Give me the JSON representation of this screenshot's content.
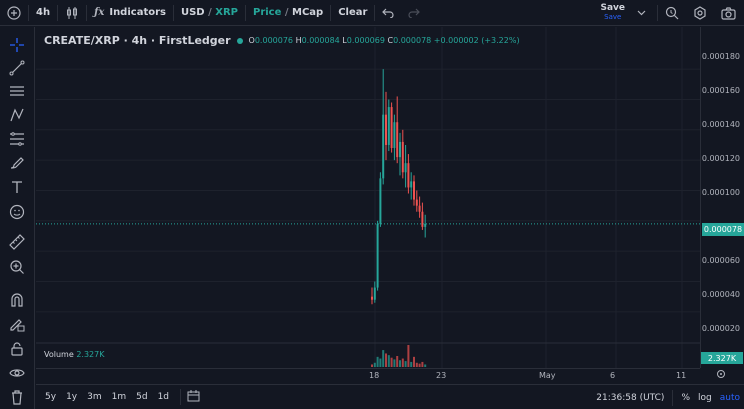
{
  "toolbar": {
    "interval": "4h",
    "indicators_label": "Indicators",
    "currency_left": "USD",
    "currency_sep": "/",
    "currency_right": "XRP",
    "price_label": "Price",
    "mode_sep": "/",
    "mcap_label": "MCap",
    "clear_label": "Clear",
    "save_label": "Save",
    "save_sub": "Save"
  },
  "legend": {
    "symbol": "CREATE/XRP · 4h · FirstLedger",
    "o_label": "O",
    "o_value": "0.000076",
    "h_label": "H",
    "h_value": "0.000084",
    "l_label": "L",
    "l_value": "0.000069",
    "c_label": "C",
    "c_value": "0.000078",
    "change": "+0.000002 (+3.22%)"
  },
  "volume": {
    "label": "Volume",
    "value": "2.327K",
    "badge": "2.327K"
  },
  "price_axis": {
    "labels": [
      "0.000180",
      "0.000160",
      "0.000140",
      "0.000120",
      "0.000100",
      "0.000060",
      "0.000040",
      "0.000020"
    ],
    "current": "0.000078"
  },
  "time_axis": {
    "labels": [
      "18",
      "23",
      "May",
      "6",
      "11"
    ]
  },
  "bottombar": {
    "ranges": [
      "5y",
      "1y",
      "3m",
      "1m",
      "5d",
      "1d"
    ],
    "clock": "21:36:58 (UTC)",
    "percent": "%",
    "log": "log",
    "auto": "auto"
  },
  "colors": {
    "up": "#26a69a",
    "down": "#ef5350",
    "accent": "#2962ff",
    "bg": "#131722"
  },
  "chart_data": {
    "type": "candlestick",
    "ylim": [
      1e-05,
      0.000188
    ],
    "candles": [
      {
        "o": 3e-05,
        "h": 3.6e-05,
        "l": 2.5e-05,
        "c": 2.8e-05
      },
      {
        "o": 2.8e-05,
        "h": 4e-05,
        "l": 2.6e-05,
        "c": 3.6e-05
      },
      {
        "o": 3.6e-05,
        "h": 8e-05,
        "l": 3.4e-05,
        "c": 7.8e-05
      },
      {
        "o": 7.8e-05,
        "h": 0.000112,
        "l": 7.6e-05,
        "c": 0.000108
      },
      {
        "o": 0.000108,
        "h": 0.00018,
        "l": 0.000104,
        "c": 0.00015
      },
      {
        "o": 0.00015,
        "h": 0.000165,
        "l": 0.00012,
        "c": 0.00013
      },
      {
        "o": 0.00013,
        "h": 0.00016,
        "l": 0.000126,
        "c": 0.000155
      },
      {
        "o": 0.000155,
        "h": 0.000158,
        "l": 0.000125,
        "c": 0.000128
      },
      {
        "o": 0.000128,
        "h": 0.00015,
        "l": 0.00012,
        "c": 0.000145
      },
      {
        "o": 0.000145,
        "h": 0.000162,
        "l": 0.000118,
        "c": 0.000122
      },
      {
        "o": 0.000122,
        "h": 0.000138,
        "l": 0.00011,
        "c": 0.000132
      },
      {
        "o": 0.000132,
        "h": 0.00014,
        "l": 0.000108,
        "c": 0.000112
      },
      {
        "o": 0.000112,
        "h": 0.00013,
        "l": 0.000102,
        "c": 0.000118
      },
      {
        "o": 0.000118,
        "h": 0.000124,
        "l": 9.8e-05,
        "c": 0.000102
      },
      {
        "o": 0.000102,
        "h": 0.000112,
        "l": 9.4e-05,
        "c": 0.000106
      },
      {
        "o": 0.000106,
        "h": 0.00011,
        "l": 9e-05,
        "c": 9.4e-05
      },
      {
        "o": 9.4e-05,
        "h": 0.0001,
        "l": 8.6e-05,
        "c": 9e-05
      },
      {
        "o": 9e-05,
        "h": 9.6e-05,
        "l": 8.2e-05,
        "c": 8.6e-05
      },
      {
        "o": 8.6e-05,
        "h": 9.2e-05,
        "l": 7.4e-05,
        "c": 7.6e-05
      },
      {
        "o": 7.6e-05,
        "h": 8.4e-05,
        "l": 6.9e-05,
        "c": 7.8e-05
      }
    ],
    "volumes": [
      0.3,
      0.5,
      1.2,
      1.0,
      2.0,
      1.6,
      1.4,
      1.1,
      0.9,
      1.3,
      0.8,
      1.0,
      0.7,
      2.6,
      0.6,
      1.2,
      0.5,
      0.4,
      0.6,
      0.3
    ]
  }
}
